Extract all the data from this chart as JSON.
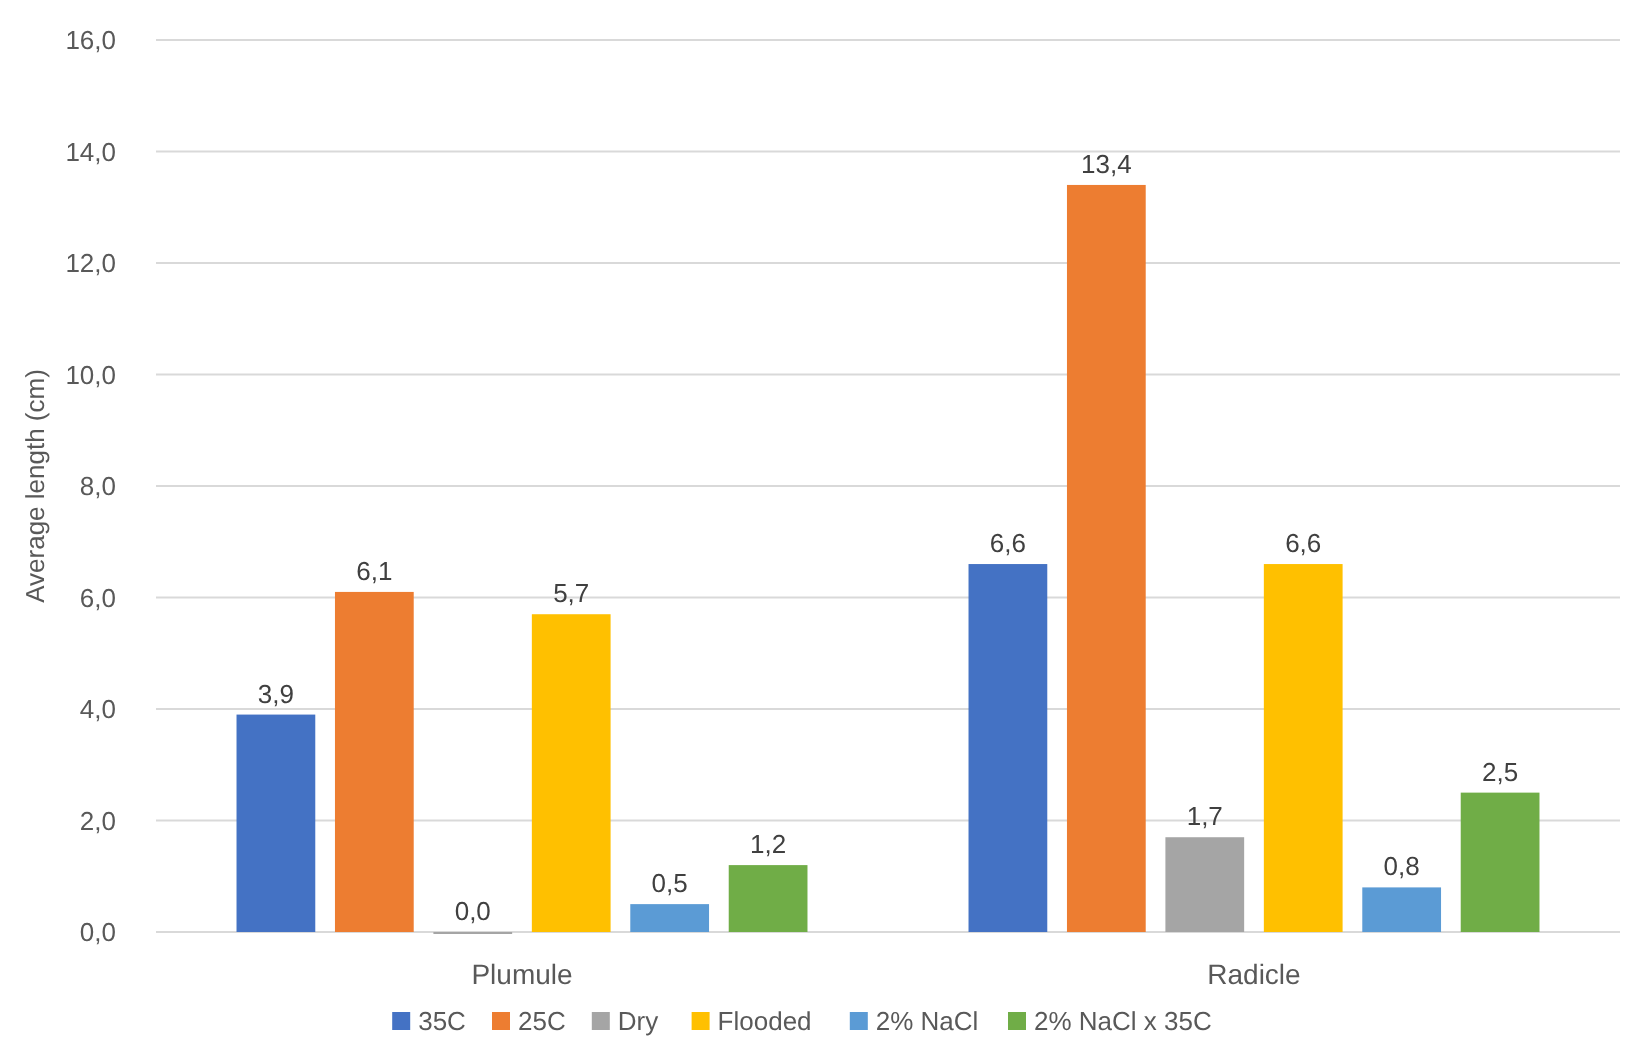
{
  "chart_data": {
    "type": "bar",
    "ylabel": "Average length (cm)",
    "categories": [
      "Plumule",
      "Radicle"
    ],
    "series": [
      {
        "name": "35C",
        "color": "#4472c4",
        "values": [
          3.9,
          6.6
        ],
        "value_labels": [
          "3,9",
          "6,6"
        ]
      },
      {
        "name": "25C",
        "color": "#ed7d31",
        "values": [
          6.1,
          13.4
        ],
        "value_labels": [
          "6,1",
          "13,4"
        ]
      },
      {
        "name": "Dry",
        "color": "#a5a5a5",
        "values": [
          0,
          1.7
        ],
        "value_labels": [
          "0,0",
          "1,7"
        ]
      },
      {
        "name": "Flooded",
        "color": "#ffc000",
        "values": [
          5.7,
          6.6
        ],
        "value_labels": [
          "5,7",
          "6,6"
        ]
      },
      {
        "name": "2% NaCl",
        "color": "#5b9bd5",
        "values": [
          0.5,
          0.8
        ],
        "value_labels": [
          "0,5",
          "0,8"
        ]
      },
      {
        "name": "2% NaCl x 35C",
        "color": "#70ad47",
        "values": [
          1.2,
          2.5
        ],
        "value_labels": [
          "1,2",
          "2,5"
        ]
      }
    ],
    "ylim": [
      0,
      16
    ],
    "yticks": [
      {
        "value": 0,
        "label": "0,0"
      },
      {
        "value": 2,
        "label": "2,0"
      },
      {
        "value": 4,
        "label": "4,0"
      },
      {
        "value": 6,
        "label": "6,0"
      },
      {
        "value": 8,
        "label": "8,0"
      },
      {
        "value": 10,
        "label": "10,0"
      },
      {
        "value": 12,
        "label": "12,0"
      },
      {
        "value": 14,
        "label": "14,0"
      },
      {
        "value": 16,
        "label": "16,0"
      }
    ],
    "grid": "y",
    "legend": "bottom"
  }
}
